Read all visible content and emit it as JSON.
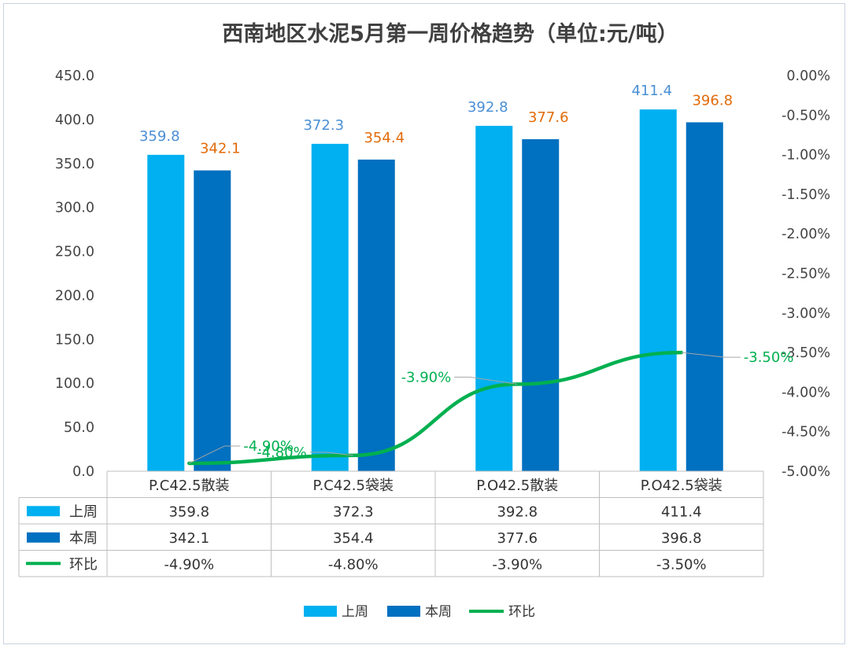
{
  "chart_data": {
    "type": "bar",
    "title": "西南地区水泥5月第一周价格趋势（单位:元/吨）",
    "categories": [
      "P.C42.5散装",
      "P.C42.5袋装",
      "P.O42.5散装",
      "P.O42.5袋装"
    ],
    "series": [
      {
        "name": "上周",
        "type": "bar",
        "axis": "left",
        "color": "#00b0f0",
        "values": [
          359.8,
          372.3,
          392.8,
          411.4
        ],
        "labels": [
          "359.8",
          "372.3",
          "392.8",
          "411.4"
        ]
      },
      {
        "name": "本周",
        "type": "bar",
        "axis": "left",
        "color": "#0070c0",
        "values": [
          342.1,
          354.4,
          377.6,
          396.8
        ],
        "labels": [
          "342.1",
          "354.4",
          "377.6",
          "396.8"
        ]
      },
      {
        "name": "环比",
        "type": "line",
        "axis": "right",
        "color": "#00b050",
        "values": [
          -4.9,
          -4.8,
          -3.9,
          -3.5
        ],
        "labels": [
          "-4.90%",
          "-4.80%",
          "-3.90%",
          "-3.50%"
        ]
      }
    ],
    "y_left": {
      "min": 0,
      "max": 450,
      "step": 50,
      "ticks": [
        "0.0",
        "50.0",
        "100.0",
        "150.0",
        "200.0",
        "250.0",
        "300.0",
        "350.0",
        "400.0",
        "450.0"
      ]
    },
    "y_right": {
      "min": -5.0,
      "max": 0.0,
      "step": 0.5,
      "ticks": [
        "-5.00%",
        "-4.50%",
        "-4.00%",
        "-3.50%",
        "-3.00%",
        "-2.50%",
        "-2.00%",
        "-1.50%",
        "-1.00%",
        "-0.50%",
        "0.00%"
      ]
    },
    "grid": false,
    "data_table": true,
    "legend_position": "bottom",
    "label_colors": {
      "上周": "#4a8fd4",
      "本周": "#e26b0a",
      "环比": "#00b050"
    }
  }
}
